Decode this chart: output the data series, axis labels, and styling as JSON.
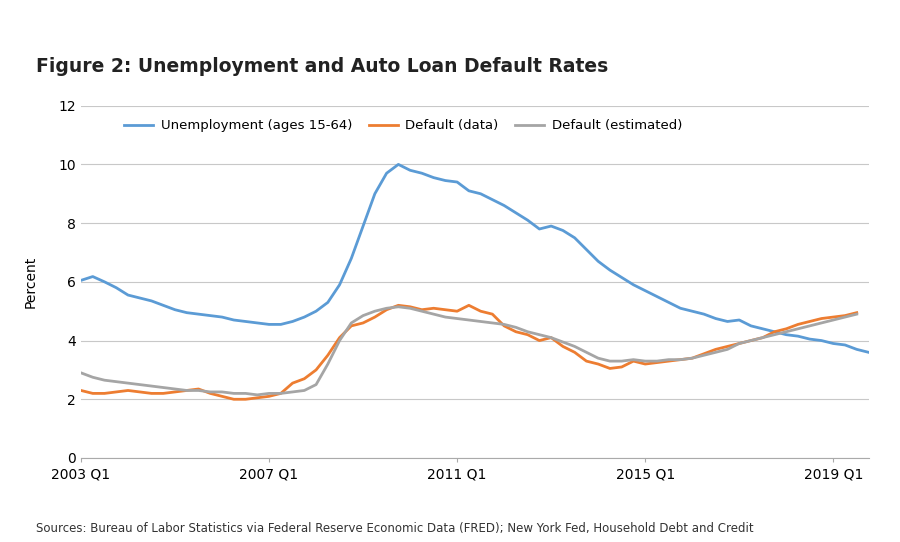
{
  "title": "Figure 2: Unemployment and Auto Loan Default Rates",
  "ylabel": "Percent",
  "source_text": "Sources: Bureau of Labor Statistics via Federal Reserve Economic Data (FRED); New York Fed, Household Debt and Credit",
  "ylim": [
    0,
    12
  ],
  "yticks": [
    0,
    2,
    4,
    6,
    8,
    10,
    12
  ],
  "xtick_labels": [
    "2003 Q1",
    "2007 Q1",
    "2011 Q1",
    "2015 Q1",
    "2019 Q1"
  ],
  "header_color": "#7ab3c8",
  "background_color": "#ffffff",
  "unemployment_x": [
    2003.0,
    2003.25,
    2003.5,
    2003.75,
    2004.0,
    2004.25,
    2004.5,
    2004.75,
    2005.0,
    2005.25,
    2005.5,
    2005.75,
    2006.0,
    2006.25,
    2006.5,
    2006.75,
    2007.0,
    2007.25,
    2007.5,
    2007.75,
    2008.0,
    2008.25,
    2008.5,
    2008.75,
    2009.0,
    2009.25,
    2009.5,
    2009.75,
    2010.0,
    2010.25,
    2010.5,
    2010.75,
    2011.0,
    2011.25,
    2011.5,
    2011.75,
    2012.0,
    2012.25,
    2012.5,
    2012.75,
    2013.0,
    2013.25,
    2013.5,
    2013.75,
    2014.0,
    2014.25,
    2014.5,
    2014.75,
    2015.0,
    2015.25,
    2015.5,
    2015.75,
    2016.0,
    2016.25,
    2016.5,
    2016.75,
    2017.0,
    2017.25,
    2017.5,
    2017.75,
    2018.0,
    2018.25,
    2018.5,
    2018.75,
    2019.0,
    2019.25,
    2019.5,
    2019.75
  ],
  "unemployment_y": [
    6.05,
    6.18,
    6.0,
    5.8,
    5.55,
    5.45,
    5.35,
    5.2,
    5.05,
    4.95,
    4.9,
    4.85,
    4.8,
    4.7,
    4.65,
    4.6,
    4.55,
    4.55,
    4.65,
    4.8,
    5.0,
    5.3,
    5.9,
    6.8,
    7.9,
    9.0,
    9.7,
    10.0,
    9.8,
    9.7,
    9.55,
    9.45,
    9.4,
    9.1,
    9.0,
    8.8,
    8.6,
    8.35,
    8.1,
    7.8,
    7.9,
    7.75,
    7.5,
    7.1,
    6.7,
    6.4,
    6.15,
    5.9,
    5.7,
    5.5,
    5.3,
    5.1,
    5.0,
    4.9,
    4.75,
    4.65,
    4.7,
    4.5,
    4.4,
    4.3,
    4.2,
    4.15,
    4.05,
    4.0,
    3.9,
    3.85,
    3.7,
    3.6
  ],
  "default_data_x": [
    2003.0,
    2003.25,
    2003.5,
    2003.75,
    2004.0,
    2004.25,
    2004.5,
    2004.75,
    2005.0,
    2005.25,
    2005.5,
    2005.75,
    2006.0,
    2006.25,
    2006.5,
    2006.75,
    2007.0,
    2007.25,
    2007.5,
    2007.75,
    2008.0,
    2008.25,
    2008.5,
    2008.75,
    2009.0,
    2009.25,
    2009.5,
    2009.75,
    2010.0,
    2010.25,
    2010.5,
    2010.75,
    2011.0,
    2011.25,
    2011.5,
    2011.75,
    2012.0,
    2012.25,
    2012.5,
    2012.75,
    2013.0,
    2013.25,
    2013.5,
    2013.75,
    2014.0,
    2014.25,
    2014.5,
    2014.75,
    2015.0,
    2015.25,
    2015.5,
    2015.75,
    2016.0,
    2016.25,
    2016.5,
    2016.75,
    2017.0,
    2017.25,
    2017.5,
    2017.75,
    2018.0,
    2018.25,
    2018.5,
    2018.75,
    2019.0,
    2019.25,
    2019.5
  ],
  "default_data_y": [
    2.3,
    2.2,
    2.2,
    2.25,
    2.3,
    2.25,
    2.2,
    2.2,
    2.25,
    2.3,
    2.35,
    2.2,
    2.1,
    2.0,
    2.0,
    2.05,
    2.1,
    2.2,
    2.55,
    2.7,
    3.0,
    3.5,
    4.1,
    4.5,
    4.6,
    4.8,
    5.05,
    5.2,
    5.15,
    5.05,
    5.1,
    5.05,
    5.0,
    5.2,
    5.0,
    4.9,
    4.5,
    4.3,
    4.2,
    4.0,
    4.1,
    3.8,
    3.6,
    3.3,
    3.2,
    3.05,
    3.1,
    3.3,
    3.2,
    3.25,
    3.3,
    3.35,
    3.4,
    3.55,
    3.7,
    3.8,
    3.9,
    4.0,
    4.1,
    4.3,
    4.4,
    4.55,
    4.65,
    4.75,
    4.8,
    4.85,
    4.95
  ],
  "default_est_x": [
    2003.0,
    2003.25,
    2003.5,
    2003.75,
    2004.0,
    2004.25,
    2004.5,
    2004.75,
    2005.0,
    2005.25,
    2005.5,
    2005.75,
    2006.0,
    2006.25,
    2006.5,
    2006.75,
    2007.0,
    2007.25,
    2007.5,
    2007.75,
    2008.0,
    2008.25,
    2008.5,
    2008.75,
    2009.0,
    2009.25,
    2009.5,
    2009.75,
    2010.0,
    2010.25,
    2010.5,
    2010.75,
    2011.0,
    2011.25,
    2011.5,
    2011.75,
    2012.0,
    2012.25,
    2012.5,
    2012.75,
    2013.0,
    2013.25,
    2013.5,
    2013.75,
    2014.0,
    2014.25,
    2014.5,
    2014.75,
    2015.0,
    2015.25,
    2015.5,
    2015.75,
    2016.0,
    2016.25,
    2016.5,
    2016.75,
    2017.0,
    2017.25,
    2017.5,
    2017.75,
    2018.0,
    2018.25,
    2018.5,
    2018.75,
    2019.0,
    2019.25,
    2019.5
  ],
  "default_est_y": [
    2.9,
    2.75,
    2.65,
    2.6,
    2.55,
    2.5,
    2.45,
    2.4,
    2.35,
    2.3,
    2.3,
    2.25,
    2.25,
    2.2,
    2.2,
    2.15,
    2.2,
    2.2,
    2.25,
    2.3,
    2.5,
    3.2,
    4.0,
    4.6,
    4.85,
    5.0,
    5.1,
    5.15,
    5.1,
    5.0,
    4.9,
    4.8,
    4.75,
    4.7,
    4.65,
    4.6,
    4.55,
    4.45,
    4.3,
    4.2,
    4.1,
    3.95,
    3.8,
    3.6,
    3.4,
    3.3,
    3.3,
    3.35,
    3.3,
    3.3,
    3.35,
    3.35,
    3.4,
    3.5,
    3.6,
    3.7,
    3.9,
    4.0,
    4.1,
    4.2,
    4.3,
    4.4,
    4.5,
    4.6,
    4.7,
    4.8,
    4.9
  ],
  "unemployment_color": "#5b9bd5",
  "default_data_color": "#ed7d31",
  "default_est_color": "#a5a5a5",
  "line_width": 2.0,
  "grid_color": "#c8c8c8",
  "xtick_positions": [
    2003,
    2007,
    2011,
    2015,
    2019
  ],
  "xlim": [
    2003.0,
    2019.75
  ]
}
